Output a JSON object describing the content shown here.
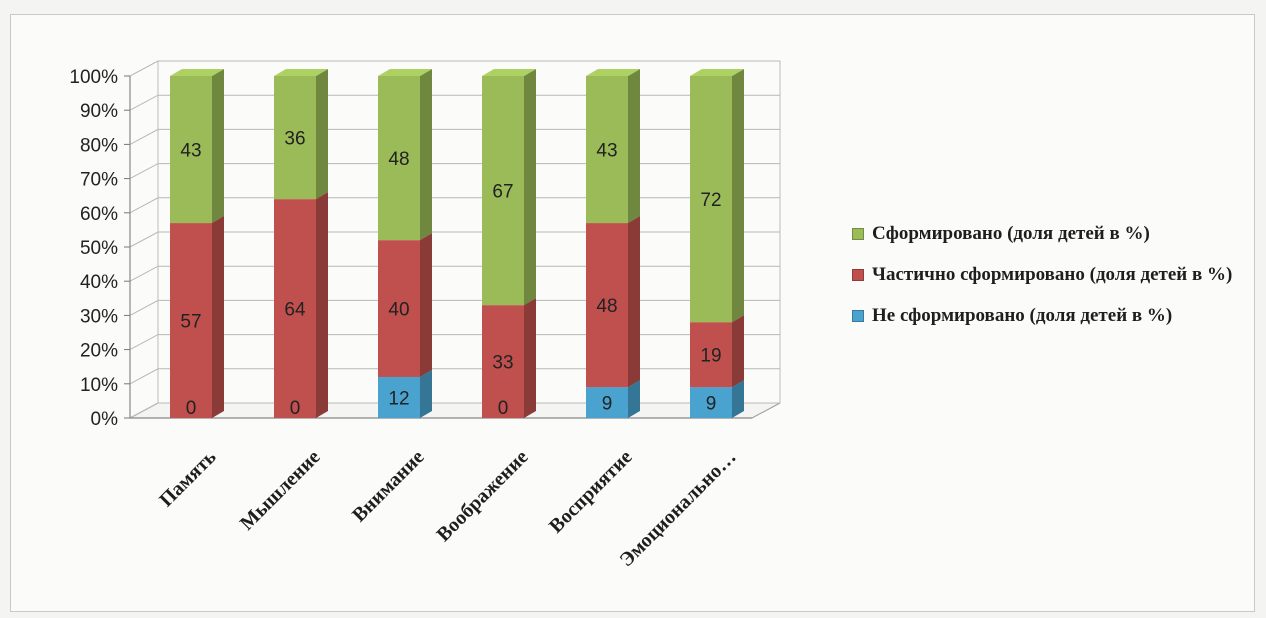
{
  "chart_data": {
    "type": "bar",
    "stacked": true,
    "three_d": true,
    "percent_stacked": true,
    "categories": [
      "Память",
      "Мышление",
      "Внимание",
      "Воображение",
      "Восприятие",
      "Эмоционально…"
    ],
    "series": [
      {
        "name": "Не сформировано (доля детей в %)",
        "values": [
          0,
          0,
          12,
          0,
          9,
          9
        ],
        "color": "#4aa3cf"
      },
      {
        "name": "Частично сформировано (доля детей в %)",
        "values": [
          57,
          64,
          40,
          33,
          48,
          19
        ],
        "color": "#c0504d"
      },
      {
        "name": "Сформировано (доля  детей в %)",
        "values": [
          43,
          36,
          48,
          67,
          43,
          72
        ],
        "color": "#9bbb59"
      }
    ],
    "y_ticks": [
      "0%",
      "10%",
      "20%",
      "30%",
      "40%",
      "50%",
      "60%",
      "70%",
      "80%",
      "90%",
      "100%"
    ],
    "ylim": [
      0,
      100
    ],
    "legend_position": "right",
    "grid": true
  },
  "legend": {
    "items": [
      {
        "label": "Сформировано (доля  детей в %)",
        "color": "#9bbb59"
      },
      {
        "label": "Частично сформировано (доля детей в %)",
        "color": "#c0504d"
      },
      {
        "label": "Не сформировано (доля детей в %)",
        "color": "#4aa3cf"
      }
    ]
  }
}
